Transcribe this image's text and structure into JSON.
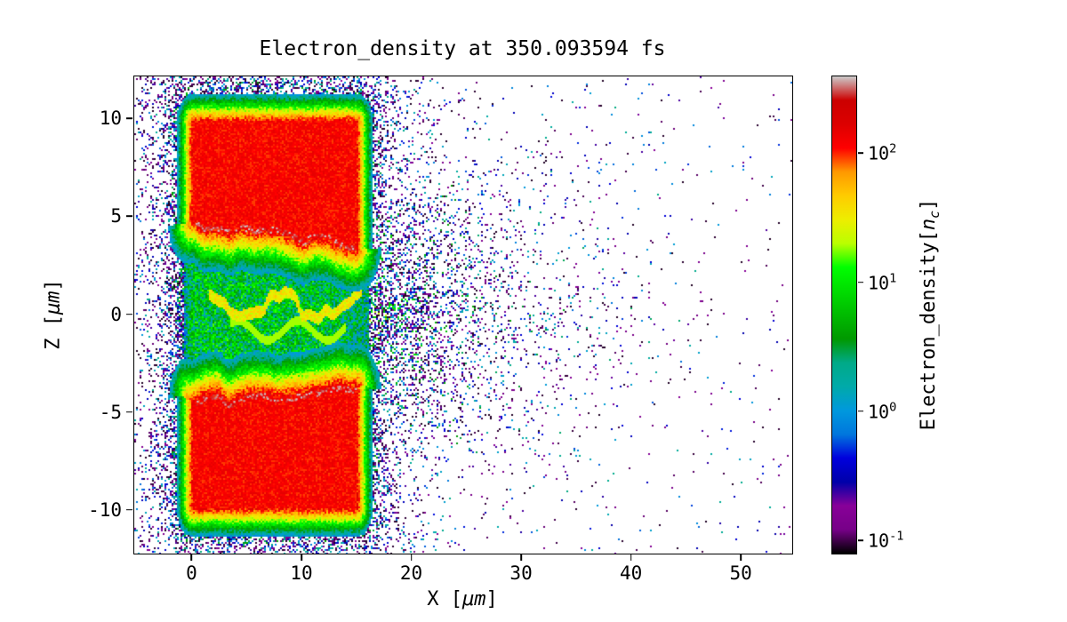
{
  "chart_data": {
    "type": "heatmap",
    "title": "Electron_density at 350.093594 fs",
    "xlabel": {
      "prefix": "X [",
      "unit": "μm",
      "suffix": "]"
    },
    "ylabel": {
      "prefix": "Z [",
      "unit": "μm",
      "suffix": "]"
    },
    "x_range": [
      -5.3,
      54.6
    ],
    "z_range": [
      -12.2,
      12.2
    ],
    "x_ticks": [
      {
        "label": "0",
        "value": 0
      },
      {
        "label": "10",
        "value": 10
      },
      {
        "label": "20",
        "value": 20
      },
      {
        "label": "30",
        "value": 30
      },
      {
        "label": "40",
        "value": 40
      },
      {
        "label": "50",
        "value": 50
      }
    ],
    "y_ticks": [
      {
        "label": "-10",
        "value": -10
      },
      {
        "label": "-5",
        "value": -5
      },
      {
        "label": "0",
        "value": 0
      },
      {
        "label": "5",
        "value": 5
      },
      {
        "label": "10",
        "value": 10
      }
    ],
    "scale": "log",
    "vmin": 0.08,
    "vmax": 400,
    "colormap": {
      "name": "nipy_spectral",
      "stops": [
        [
          0.0,
          "#000000"
        ],
        [
          0.05,
          "#770088"
        ],
        [
          0.1,
          "#880099"
        ],
        [
          0.15,
          "#0000aa"
        ],
        [
          0.2,
          "#0000dd"
        ],
        [
          0.25,
          "#0077dd"
        ],
        [
          0.3,
          "#0099dd"
        ],
        [
          0.35,
          "#00aaaa"
        ],
        [
          0.4,
          "#00aa88"
        ],
        [
          0.45,
          "#009900"
        ],
        [
          0.5,
          "#00bb00"
        ],
        [
          0.55,
          "#00dd00"
        ],
        [
          0.6,
          "#00ff00"
        ],
        [
          0.65,
          "#bbff00"
        ],
        [
          0.7,
          "#eeee00"
        ],
        [
          0.75,
          "#ffcc00"
        ],
        [
          0.8,
          "#ff9900"
        ],
        [
          0.85,
          "#ff0000"
        ],
        [
          0.9,
          "#dd0000"
        ],
        [
          0.95,
          "#cc0000"
        ],
        [
          1.0,
          "#cccccc"
        ]
      ]
    },
    "colorbar": {
      "label": {
        "prefix": "Electron_density[",
        "var": "n",
        "sub": "c",
        "suffix": "]"
      },
      "ticks": [
        {
          "base": "10",
          "exp": "2",
          "value": 100
        },
        {
          "base": "10",
          "exp": "1",
          "value": 10
        },
        {
          "base": "10",
          "exp": "0",
          "value": 1
        },
        {
          "base": "10",
          "exp": "-1",
          "value": 0.1
        }
      ]
    },
    "features": {
      "targets": [
        {
          "x": [
            0,
            15
          ],
          "z_outer": 9.9,
          "z_inner_left": 4.6,
          "z_inner_right": 3.45,
          "density": 120,
          "note": "upper solid target block"
        },
        {
          "x": [
            0,
            15
          ],
          "z_outer": -9.9,
          "z_inner_left": -4.35,
          "z_inner_right": -3.6,
          "density": 120,
          "note": "lower solid target block"
        }
      ],
      "surface_line_density": 350,
      "channel": {
        "x": [
          -0.8,
          16
        ],
        "density": 4.5,
        "filament_density": 32
      },
      "fan": {
        "x": [
          15,
          40
        ],
        "spread": 0.3,
        "p0": 0.8,
        "decay": 8
      },
      "halo": {
        "p_near": 0.9,
        "sigma_near": 1.1,
        "p_far": 0.28,
        "sigma_far": 4.0
      },
      "background_speckle": {
        "p": 0.006,
        "p_extra": 0.01,
        "decay": 25
      }
    }
  }
}
